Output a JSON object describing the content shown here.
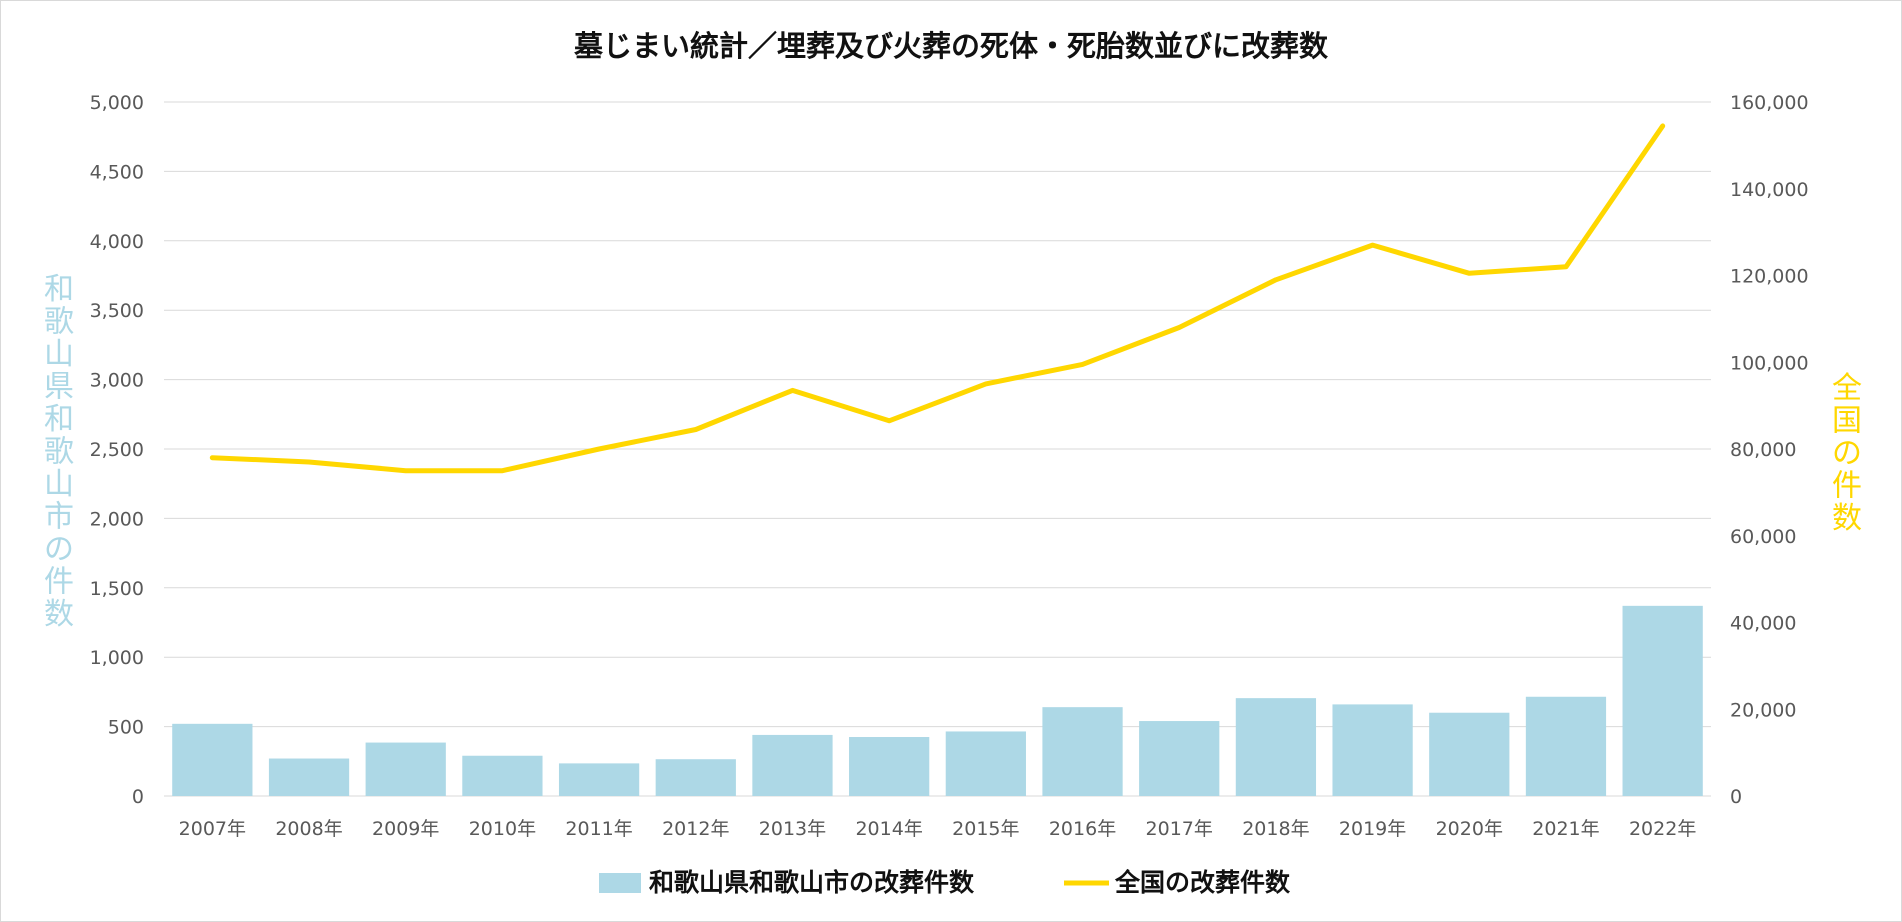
{
  "chart_data": {
    "type": "bar+line",
    "title": "墓じまい統計／埋葬及び火葬の死体・死胎数並びに改葬数",
    "categories": [
      "2007年",
      "2008年",
      "2009年",
      "2010年",
      "2011年",
      "2012年",
      "2013年",
      "2014年",
      "2015年",
      "2016年",
      "2017年",
      "2018年",
      "2019年",
      "2020年",
      "2021年",
      "2022年"
    ],
    "series": [
      {
        "name": "和歌山県和歌山市の改葬件数",
        "kind": "bar",
        "axis": "left",
        "color": "#add8e6",
        "values": [
          520,
          270,
          385,
          290,
          235,
          265,
          440,
          425,
          465,
          640,
          540,
          705,
          660,
          600,
          715,
          1370
        ]
      },
      {
        "name": "全国の改葬件数",
        "kind": "line",
        "axis": "right",
        "color": "#ffd700",
        "values": [
          78000,
          77000,
          75000,
          75000,
          80000,
          84500,
          93500,
          86500,
          95000,
          99500,
          108000,
          119000,
          127000,
          120500,
          122000,
          154500
        ]
      }
    ],
    "ylabel": "和歌山県和歌山市の件数",
    "y2label": "全国の件数",
    "ylim": [
      0,
      5000
    ],
    "y2lim": [
      0,
      160000
    ],
    "yticks": [
      "0",
      "500",
      "1,000",
      "1,500",
      "2,000",
      "2,500",
      "3,000",
      "3,500",
      "4,000",
      "4,500",
      "5,000"
    ],
    "y2ticks": [
      "0",
      "20,000",
      "40,000",
      "60,000",
      "80,000",
      "100,000",
      "120,000",
      "140,000",
      "160,000"
    ],
    "grid": true,
    "legend_position": "bottom",
    "colors": {
      "left_label": "#add8e6",
      "right_label": "#ffd700",
      "gridline": "#d9d9d9",
      "tick_text": "#595959"
    }
  }
}
